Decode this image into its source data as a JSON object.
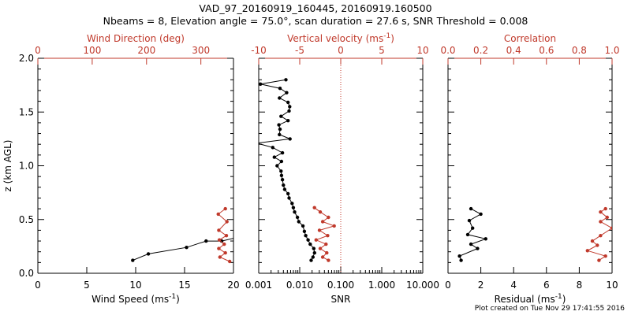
{
  "title_line1": "VAD_97_20160919_160445, 20160919.160500",
  "title_line2": "Nbeams = 8, Elevation angle = 75.0°, scan duration = 27.6 s, SNR Threshold = 0.008",
  "footer": "Plot created on Tue Nov 29 17:41:55 2016",
  "colors": {
    "black": "#000000",
    "red": "#c0392b"
  },
  "chart_data": [
    {
      "id": "wind",
      "type": "line",
      "ylabel": "z (km AGL)",
      "ylim": [
        0,
        2.0
      ],
      "yticks": [
        "0.0",
        "0.5",
        "1.0",
        "1.5",
        "2.0"
      ],
      "bottom_axis": {
        "label": "Wind Speed (ms",
        "label_sup": "-1",
        "label_end": ")",
        "range": [
          0,
          20
        ],
        "ticks": [
          "0",
          "5",
          "10",
          "15",
          "20"
        ],
        "tick_values": [
          0,
          5,
          10,
          15,
          20
        ]
      },
      "top_axis": {
        "label": "Wind Direction (deg)",
        "range": [
          0,
          360
        ],
        "ticks": [
          "0",
          "100",
          "200",
          "300"
        ],
        "tick_values": [
          0,
          100,
          200,
          300
        ],
        "color": "#c0392b"
      },
      "series": [
        {
          "axis": "bottom",
          "color": "#000000",
          "x": [
            9.7,
            11.3,
            15.2,
            17.2,
            18.8,
            20.2
          ],
          "y": [
            0.12,
            0.18,
            0.24,
            0.3,
            0.3,
            0.33
          ]
        },
        {
          "axis": "top",
          "color": "#c0392b",
          "x": [
            353,
            335,
            345,
            333,
            343,
            334,
            347,
            333,
            348,
            332,
            345
          ],
          "y": [
            0.11,
            0.15,
            0.19,
            0.23,
            0.27,
            0.31,
            0.35,
            0.4,
            0.48,
            0.55,
            0.6
          ]
        }
      ]
    },
    {
      "id": "snr",
      "type": "line",
      "ylim": [
        0,
        2.0
      ],
      "bottom_axis": {
        "label": "SNR",
        "range": [
          0.001,
          10
        ],
        "scale": "log",
        "ticks": [
          "0.001",
          "0.010",
          "0.100",
          "1.000",
          "10.000"
        ],
        "tick_values": [
          0.001,
          0.01,
          0.1,
          1,
          10
        ]
      },
      "top_axis": {
        "label": "Vertical velocity (ms",
        "label_sup": "-1",
        "label_end": ")",
        "range": [
          -10,
          10
        ],
        "ticks": [
          "-10",
          "-5",
          "0",
          "5",
          "10"
        ],
        "tick_values": [
          -10,
          -5,
          0,
          5,
          10
        ],
        "color": "#c0392b"
      },
      "reference_line": {
        "axis": "top",
        "value": 0,
        "color": "#c0392b",
        "dotted": true
      },
      "series": [
        {
          "axis": "bottom",
          "color": "#000000",
          "x": [
            0.019,
            0.021,
            0.023,
            0.022,
            0.018,
            0.016,
            0.014,
            0.013,
            0.012,
            0.0095,
            0.0088,
            0.0075,
            0.007,
            0.0065,
            0.0055,
            0.0052,
            0.0043,
            0.004,
            0.0038,
            0.0036,
            0.0035,
            0.0028,
            0.0036,
            0.0024,
            0.0038,
            0.0022,
            0.0009,
            0.0058,
            0.0032,
            0.0033,
            0.0031,
            0.0052,
            0.0035,
            0.0055,
            0.0057,
            0.0052,
            0.0032,
            0.0048,
            0.0033,
            0.0011,
            0.0046
          ],
          "y": [
            0.12,
            0.15,
            0.19,
            0.23,
            0.27,
            0.31,
            0.35,
            0.39,
            0.44,
            0.48,
            0.52,
            0.57,
            0.61,
            0.65,
            0.7,
            0.74,
            0.78,
            0.82,
            0.87,
            0.91,
            0.95,
            1.0,
            1.04,
            1.08,
            1.12,
            1.17,
            1.21,
            1.25,
            1.29,
            1.34,
            1.38,
            1.42,
            1.46,
            1.51,
            1.55,
            1.59,
            1.63,
            1.68,
            1.72,
            1.76,
            1.8
          ]
        },
        {
          "axis": "top",
          "color": "#c0392b",
          "x": [
            -1.5,
            -2.2,
            -1.7,
            -2.5,
            -1.8,
            -3.0,
            -1.6,
            -2.6,
            -0.8,
            -2.2,
            -1.5,
            -2.5,
            -3.2
          ],
          "y": [
            0.12,
            0.15,
            0.19,
            0.23,
            0.27,
            0.31,
            0.35,
            0.4,
            0.44,
            0.48,
            0.52,
            0.57,
            0.61
          ]
        }
      ]
    },
    {
      "id": "resid",
      "type": "line",
      "ylim": [
        0,
        2.0
      ],
      "bottom_axis": {
        "label": "Residual (ms",
        "label_sup": "-1",
        "label_end": ")",
        "range": [
          0,
          10
        ],
        "ticks": [
          "0",
          "2",
          "4",
          "6",
          "8",
          "10"
        ],
        "tick_values": [
          0,
          2,
          4,
          6,
          8,
          10
        ]
      },
      "top_axis": {
        "label": "Correlation",
        "range": [
          0,
          1.0
        ],
        "ticks": [
          "0.0",
          "0.2",
          "0.4",
          "0.6",
          "0.8",
          "1.0"
        ],
        "tick_values": [
          0,
          0.2,
          0.4,
          0.6,
          0.8,
          1.0
        ],
        "color": "#c0392b"
      },
      "series": [
        {
          "axis": "bottom",
          "color": "#000000",
          "x": [
            0.8,
            0.7,
            1.8,
            1.4,
            2.3,
            1.2,
            1.5,
            1.3,
            2.0,
            1.4
          ],
          "y": [
            0.12,
            0.16,
            0.23,
            0.27,
            0.32,
            0.36,
            0.42,
            0.49,
            0.55,
            0.6
          ]
        },
        {
          "axis": "top",
          "color": "#c0392b",
          "x": [
            0.92,
            0.96,
            0.85,
            0.91,
            0.88,
            0.93,
            1.0,
            0.93,
            0.97,
            0.93,
            0.96
          ],
          "y": [
            0.12,
            0.16,
            0.21,
            0.26,
            0.3,
            0.35,
            0.42,
            0.48,
            0.52,
            0.57,
            0.6
          ]
        }
      ]
    }
  ]
}
